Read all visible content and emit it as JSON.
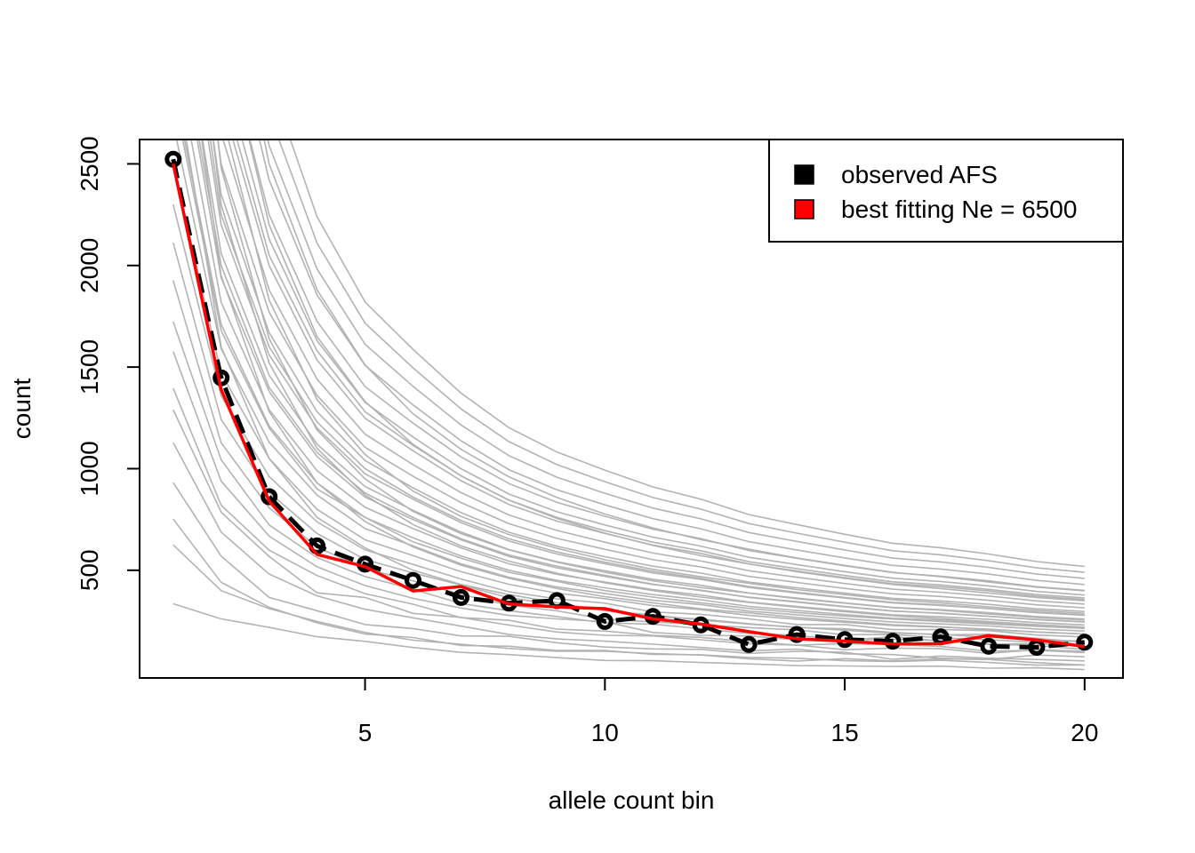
{
  "chart_data": {
    "type": "line",
    "title": "",
    "xlabel": "allele count bin",
    "ylabel": "count",
    "xlim": [
      0.3,
      20.8
    ],
    "ylim": [
      -30,
      2620
    ],
    "xticks": [
      5,
      10,
      15,
      20
    ],
    "yticks": [
      500,
      1000,
      1500,
      2000,
      2500
    ],
    "grid": false,
    "legend_position": "top-right",
    "legend": [
      {
        "label": "observed AFS",
        "color": "#000000"
      },
      {
        "label": "best fitting Ne = 6500",
        "color": "#ff0000"
      }
    ],
    "x": [
      1,
      2,
      3,
      4,
      5,
      6,
      7,
      8,
      9,
      10,
      11,
      12,
      13,
      14,
      15,
      16,
      17,
      18,
      19,
      20
    ],
    "series": [
      {
        "role": "observed",
        "style": "dashed line with open circles",
        "color": "#000000",
        "values": [
          2523,
          1447,
          862,
          620,
          530,
          450,
          366,
          338,
          351,
          248,
          273,
          231,
          135,
          184,
          159,
          151,
          172,
          126,
          121,
          146
        ]
      },
      {
        "role": "best_fit",
        "style": "solid line",
        "color": "#ff0000",
        "values": [
          2500,
          1390,
          840,
          578,
          518,
          398,
          420,
          334,
          320,
          311,
          261,
          235,
          198,
          163,
          151,
          137,
          139,
          178,
          157,
          125
        ]
      }
    ],
    "simulations_color": "#b3b3b3",
    "simulations": [
      [
        335,
        261,
        219,
        173,
        150,
        120,
        96,
        85,
        70,
        56,
        55,
        46,
        39,
        31,
        29,
        27,
        28,
        18,
        20,
        11
      ],
      [
        625,
        400,
        311,
        248,
        194,
        156,
        136,
        115,
        101,
        101,
        90,
        83,
        64,
        53,
        65,
        54,
        64,
        61,
        45,
        34
      ],
      [
        752,
        441,
        318,
        241,
        186,
        169,
        130,
        126,
        105,
        105,
        86,
        84,
        71,
        67,
        55,
        51,
        57,
        46,
        33,
        34
      ],
      [
        931,
        570,
        366,
        301,
        233,
        213,
        177,
        175,
        143,
        122,
        113,
        111,
        91,
        101,
        97,
        62,
        78,
        67,
        61,
        54
      ],
      [
        1128,
        688,
        481,
        374,
        308,
        266,
        225,
        184,
        162,
        151,
        136,
        120,
        103,
        112,
        89,
        85,
        67,
        61,
        83,
        74
      ],
      [
        1290,
        786,
        568,
        389,
        366,
        288,
        268,
        230,
        196,
        180,
        177,
        158,
        138,
        132,
        109,
        117,
        114,
        91,
        109,
        101
      ],
      [
        1396,
        820,
        599,
        474,
        385,
        333,
        267,
        254,
        210,
        201,
        180,
        170,
        148,
        132,
        139,
        135,
        125,
        102,
        106,
        95
      ],
      [
        1576,
        939,
        668,
        517,
        425,
        362,
        314,
        278,
        261,
        247,
        194,
        180,
        177,
        157,
        156,
        161,
        154,
        135,
        130,
        110
      ],
      [
        1723,
        1044,
        723,
        562,
        469,
        407,
        336,
        301,
        272,
        241,
        235,
        212,
        189,
        180,
        155,
        173,
        152,
        137,
        139,
        129
      ],
      [
        1926,
        1127,
        807,
        614,
        507,
        448,
        381,
        328,
        300,
        260,
        246,
        232,
        218,
        206,
        183,
        184,
        167,
        158,
        146,
        153
      ],
      [
        2112,
        1243,
        883,
        681,
        553,
        487,
        427,
        365,
        330,
        305,
        272,
        260,
        237,
        218,
        212,
        194,
        182,
        185,
        165,
        146
      ],
      [
        2300,
        1359,
        962,
        738,
        600,
        529,
        457,
        394,
        359,
        338,
        295,
        283,
        261,
        233,
        233,
        208,
        208,
        203,
        181,
        172
      ],
      [
        2500,
        1470,
        1050,
        800,
        650,
        572,
        493,
        431,
        387,
        360,
        326,
        306,
        278,
        259,
        244,
        228,
        220,
        210,
        196,
        187
      ],
      [
        2700,
        1590,
        1130,
        870,
        705,
        620,
        532,
        466,
        418,
        386,
        352,
        331,
        299,
        281,
        262,
        245,
        236,
        226,
        211,
        201
      ],
      [
        2900,
        1710,
        1210,
        930,
        760,
        660,
        570,
        500,
        450,
        414,
        380,
        355,
        322,
        302,
        282,
        264,
        255,
        242,
        227,
        216
      ],
      [
        3100,
        1820,
        1290,
        990,
        810,
        705,
        610,
        532,
        480,
        442,
        405,
        378,
        344,
        322,
        301,
        281,
        271,
        258,
        242,
        231
      ],
      [
        3300,
        1940,
        1380,
        1060,
        860,
        750,
        650,
        568,
        512,
        470,
        430,
        402,
        366,
        343,
        320,
        299,
        289,
        274,
        257,
        246
      ],
      [
        3500,
        2060,
        1460,
        1120,
        912,
        795,
        688,
        602,
        542,
        498,
        456,
        426,
        388,
        363,
        339,
        317,
        306,
        291,
        272,
        260
      ],
      [
        3750,
        2200,
        1560,
        1200,
        975,
        850,
        735,
        644,
        580,
        532,
        487,
        455,
        415,
        388,
        363,
        339,
        327,
        311,
        291,
        278
      ],
      [
        4000,
        2350,
        1670,
        1280,
        1040,
        906,
        784,
        687,
        618,
        567,
        520,
        486,
        442,
        414,
        387,
        362,
        349,
        332,
        310,
        297
      ],
      [
        4250,
        2500,
        1770,
        1360,
        1105,
        963,
        833,
        729,
        657,
        603,
        552,
        516,
        470,
        440,
        411,
        384,
        371,
        352,
        330,
        315
      ],
      [
        4500,
        2650,
        1880,
        1440,
        1170,
        1020,
        882,
        772,
        696,
        638,
        585,
        546,
        498,
        466,
        435,
        407,
        392,
        373,
        349,
        334
      ],
      [
        4800,
        2820,
        2000,
        1535,
        1248,
        1088,
        941,
        824,
        742,
        681,
        624,
        583,
        531,
        497,
        464,
        434,
        419,
        398,
        372,
        356
      ],
      [
        5100,
        3000,
        2130,
        1630,
        1326,
        1156,
        1000,
        875,
        788,
        723,
        663,
        619,
        564,
        528,
        493,
        461,
        445,
        423,
        396,
        378
      ],
      [
        5400,
        3170,
        2250,
        1725,
        1404,
        1224,
        1058,
        927,
        834,
        766,
        702,
        656,
        597,
        559,
        522,
        488,
        471,
        448,
        419,
        401
      ],
      [
        5800,
        3410,
        2420,
        1855,
        1508,
        1314,
        1137,
        995,
        896,
        822,
        754,
        704,
        641,
        600,
        561,
        524,
        506,
        481,
        450,
        430
      ],
      [
        6200,
        3640,
        2590,
        1983,
        1612,
        1405,
        1215,
        1064,
        958,
        879,
        806,
        753,
        686,
        642,
        600,
        560,
        541,
        514,
        481,
        460
      ],
      [
        6600,
        3880,
        2750,
        2110,
        1716,
        1496,
        1294,
        1133,
        1020,
        936,
        858,
        801,
        730,
        683,
        638,
        596,
        576,
        547,
        512,
        490
      ],
      [
        7000,
        4110,
        2920,
        2240,
        1820,
        1587,
        1372,
        1202,
        1082,
        993,
        910,
        850,
        774,
        725,
        677,
        633,
        611,
        580,
        543,
        519
      ],
      [
        3000,
        1600,
        1050,
        760,
        610,
        500,
        430,
        380,
        340,
        300,
        280,
        255,
        235,
        220,
        205,
        190,
        185,
        170,
        160,
        150
      ],
      [
        3600,
        1950,
        1280,
        930,
        740,
        615,
        525,
        460,
        410,
        370,
        340,
        310,
        290,
        268,
        250,
        232,
        222,
        208,
        196,
        186
      ],
      [
        4200,
        2300,
        1520,
        1100,
        870,
        725,
        620,
        545,
        485,
        438,
        400,
        368,
        342,
        318,
        296,
        276,
        262,
        247,
        232,
        220
      ],
      [
        4600,
        2480,
        1640,
        1190,
        950,
        790,
        680,
        600,
        540,
        490,
        448,
        415,
        388,
        360,
        338,
        316,
        303,
        285,
        268,
        255
      ],
      [
        5200,
        2760,
        1830,
        1340,
        1070,
        890,
        765,
        676,
        608,
        552,
        505,
        468,
        436,
        405,
        380,
        355,
        340,
        320,
        302,
        288
      ],
      [
        5600,
        3200,
        2200,
        1650,
        1330,
        1120,
        965,
        845,
        755,
        683,
        622,
        572,
        531,
        493,
        460,
        430,
        410,
        388,
        366,
        350
      ],
      [
        6400,
        3650,
        2500,
        1880,
        1510,
        1270,
        1095,
        960,
        858,
        777,
        708,
        651,
        604,
        561,
        524,
        490,
        468,
        442,
        417,
        399
      ],
      [
        2850,
        1680,
        1200,
        900,
        760,
        640,
        560,
        490,
        445,
        400,
        368,
        340,
        312,
        292,
        275,
        260,
        248,
        236,
        224,
        214
      ],
      [
        3350,
        2000,
        1400,
        1080,
        880,
        760,
        655,
        575,
        520,
        475,
        432,
        400,
        368,
        345,
        322,
        300,
        288,
        273,
        258,
        246
      ],
      [
        3900,
        2250,
        1600,
        1230,
        1000,
        860,
        745,
        655,
        590,
        540,
        495,
        460,
        420,
        392,
        366,
        342,
        330,
        312,
        294,
        280
      ],
      [
        5000,
        2900,
        2050,
        1580,
        1280,
        1115,
        965,
        845,
        760,
        695,
        638,
        596,
        542,
        508,
        474,
        443,
        428,
        406,
        380,
        364
      ]
    ]
  }
}
